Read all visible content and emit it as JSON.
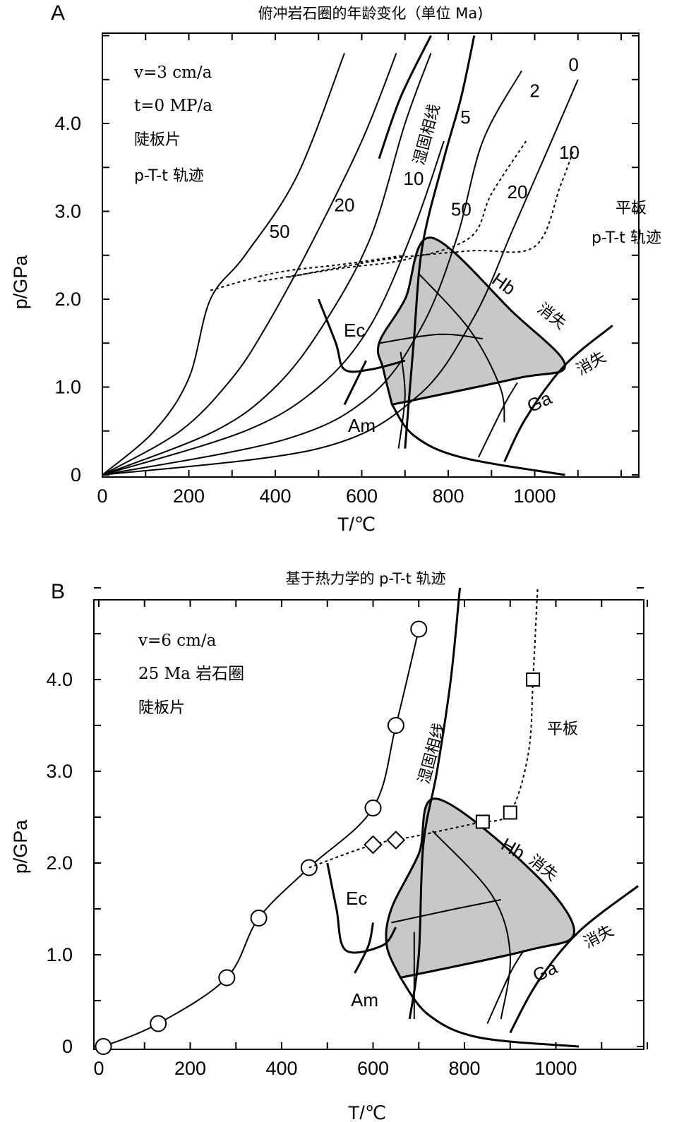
{
  "chart_data": [
    {
      "panel": "A",
      "type": "line",
      "title": "俯冲岩石圈的年龄变化（单位 Ma)",
      "xlabel": "T/℃",
      "ylabel": "p/GPa",
      "xlim": [
        0,
        1200
      ],
      "ylim": [
        0,
        5.0
      ],
      "x_ticks": [
        "0",
        "200",
        "400",
        "600",
        "800",
        "1000"
      ],
      "y_ticks": [
        "0",
        "1.0",
        "2.0",
        "3.0",
        "4.0"
      ],
      "annotations": {
        "velocity": "v=3 cm/a",
        "time": "t=0 MP/a",
        "slab": "陡板片",
        "path": "p-T-t 轨迹",
        "flat": "平板",
        "flat_path": "p-T-t 轨迹",
        "wet_solidus": "湿固相线",
        "hb_out": "消失",
        "ga_out": "消失"
      },
      "field_labels": [
        "Ec",
        "Am",
        "Hb",
        "Ga"
      ],
      "steep_slab_series": [
        {
          "name": "50",
          "points": [
            [
              0,
              0
            ],
            [
              120,
              0.5
            ],
            [
              200,
              1.1
            ],
            [
              250,
              2.0
            ],
            [
              330,
              2.5
            ],
            [
              450,
              3.4
            ],
            [
              560,
              4.8
            ]
          ]
        },
        {
          "name": "20",
          "points": [
            [
              0,
              0
            ],
            [
              180,
              0.5
            ],
            [
              300,
              1.1
            ],
            [
              380,
              1.7
            ],
            [
              480,
              2.6
            ],
            [
              600,
              3.8
            ],
            [
              680,
              4.8
            ]
          ]
        },
        {
          "name": "10",
          "points": [
            [
              0,
              0
            ],
            [
              260,
              0.5
            ],
            [
              400,
              1.0
            ],
            [
              510,
              1.7
            ],
            [
              620,
              2.7
            ],
            [
              700,
              4.0
            ],
            [
              760,
              4.8
            ]
          ]
        },
        {
          "name": "5",
          "points": [
            [
              0,
              0
            ],
            [
              330,
              0.5
            ],
            [
              500,
              1.0
            ],
            [
              620,
              1.7
            ],
            [
              720,
              2.8
            ],
            [
              790,
              3.8
            ]
          ]
        },
        {
          "name": "2",
          "points": [
            [
              0,
              0
            ],
            [
              420,
              0.4
            ],
            [
              620,
              0.9
            ],
            [
              740,
              1.7
            ],
            [
              820,
              2.7
            ],
            [
              880,
              3.8
            ],
            [
              970,
              4.6
            ]
          ]
        },
        {
          "name": "0",
          "points": [
            [
              0,
              0
            ],
            [
              500,
              0.3
            ],
            [
              730,
              0.9
            ],
            [
              860,
              1.8
            ],
            [
              950,
              2.8
            ],
            [
              1030,
              3.7
            ],
            [
              1100,
              4.5
            ]
          ]
        }
      ],
      "flat_slab_series": [
        {
          "name": "50",
          "points": [
            [
              250,
              2.1
            ],
            [
              400,
              2.3
            ],
            [
              560,
              2.4
            ],
            [
              700,
              2.5
            ]
          ]
        },
        {
          "name": "20",
          "points": [
            [
              360,
              2.2
            ],
            [
              550,
              2.35
            ],
            [
              700,
              2.45
            ],
            [
              850,
              2.7
            ],
            [
              900,
              3.2
            ],
            [
              980,
              3.8
            ]
          ]
        },
        {
          "name": "10",
          "points": [
            [
              430,
              2.25
            ],
            [
              650,
              2.45
            ],
            [
              850,
              2.55
            ],
            [
              1000,
              2.6
            ],
            [
              1060,
              3.3
            ],
            [
              1090,
              3.7
            ]
          ]
        }
      ]
    },
    {
      "panel": "B",
      "type": "line",
      "title": "基于热力学的 p-T-t 轨迹",
      "xlabel": "T/℃",
      "ylabel": "p/GPa",
      "xlim": [
        0,
        1200
      ],
      "ylim": [
        0,
        5.0
      ],
      "x_ticks": [
        "0",
        "200",
        "400",
        "600",
        "800",
        "1000"
      ],
      "y_ticks": [
        "0",
        "1.0",
        "2.0",
        "3.0",
        "4.0"
      ],
      "annotations": {
        "velocity": "v=6 cm/a",
        "age": "25 Ma 岩石圈",
        "slab": "陡板片",
        "flat": "平板",
        "wet_solidus": "湿固相线",
        "hb_out": "消失",
        "ga_out": "消失"
      },
      "field_labels": [
        "Ec",
        "Am",
        "Hb",
        "Ga"
      ],
      "steep_slab_points": [
        [
          10,
          0.0
        ],
        [
          130,
          0.25
        ],
        [
          280,
          0.75
        ],
        [
          350,
          1.4
        ],
        [
          460,
          1.95
        ],
        [
          600,
          2.6
        ],
        [
          650,
          3.5
        ],
        [
          700,
          4.55
        ]
      ],
      "diamond_points": [
        [
          600,
          2.2
        ],
        [
          650,
          2.25
        ]
      ],
      "flat_slab_points": [
        [
          840,
          2.45
        ],
        [
          900,
          2.55
        ],
        [
          950,
          4.0
        ]
      ]
    }
  ]
}
